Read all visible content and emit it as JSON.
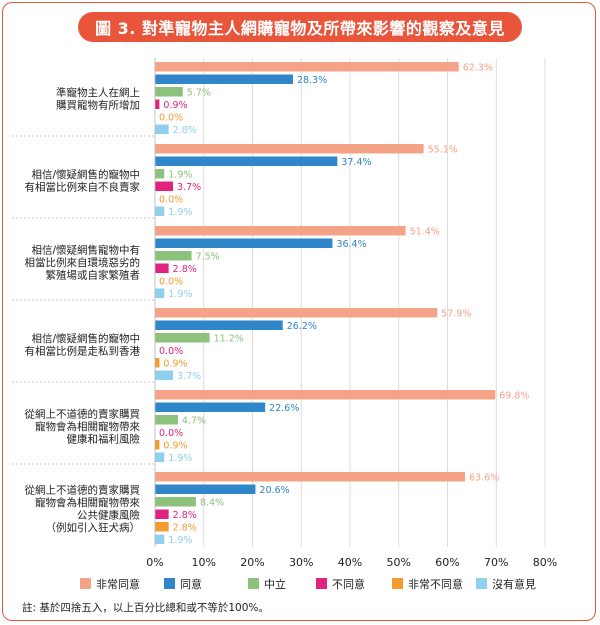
{
  "title": "圖 3. 對準寵物主人網購寵物及所帶來影響的觀察及意見",
  "note": "註: 基於四捨五入，以上百分比總和或不等於100%。",
  "colors": {
    "非常同意": "#f4a387",
    "同意": "#2f86c8",
    "中立": "#8dc27d",
    "不同意": "#e2237d",
    "非常不同意": "#f39b2f",
    "沒有意見": "#8fd0ee",
    "frame": "#e8553b"
  },
  "chart_data": {
    "type": "bar",
    "orientation": "horizontal",
    "x_ticks": [
      "0%",
      "10%",
      "20%",
      "30%",
      "40%",
      "50%",
      "60%",
      "70%",
      "80%"
    ],
    "xlim": [
      0,
      80
    ],
    "grid": true,
    "legend_position": "bottom",
    "categories": [
      [
        "準寵物主人在網上",
        "購買寵物有所增加"
      ],
      [
        "相信/懷疑網售的寵物中",
        "有相當比例來自不良賣家"
      ],
      [
        "相信/懷疑網售寵物中有",
        "相當比例來自環境惡劣的",
        "繁殖場或自家繁殖者"
      ],
      [
        "相信/懷疑網售的寵物中",
        "有相當比例是走私到香港"
      ],
      [
        "從網上不道德的賣家購買",
        "寵物會為相關寵物帶來",
        "健康和福利風險"
      ],
      [
        "從網上不道德的賣家購買",
        "寵物會為相關寵物帶來",
        "公共健康風險",
        "（例如引入狂犬病）"
      ]
    ],
    "series": [
      {
        "name": "非常同意",
        "values": [
          62.3,
          55.1,
          51.4,
          57.9,
          69.8,
          63.6
        ],
        "labels": [
          "62.3%",
          "55.1%",
          "51.4%",
          "57.9%",
          "69.8%",
          "63.6%"
        ]
      },
      {
        "name": "同意",
        "values": [
          28.3,
          37.4,
          36.4,
          26.2,
          22.6,
          20.6
        ],
        "labels": [
          "28.3%",
          "37.4%",
          "36.4%",
          "26.2%",
          "22.6%",
          "20.6%"
        ]
      },
      {
        "name": "中立",
        "values": [
          5.7,
          1.9,
          7.5,
          11.2,
          4.7,
          8.4
        ],
        "labels": [
          "5.7%",
          "1.9%",
          "7.5%",
          "11.2%",
          "4.7%",
          "8.4%"
        ]
      },
      {
        "name": "不同意",
        "values": [
          0.9,
          3.7,
          2.8,
          0.0,
          0.0,
          2.8
        ],
        "labels": [
          "0.9%",
          "3.7%",
          "2.8%",
          "0.0%",
          "0.0%",
          "2.8%"
        ]
      },
      {
        "name": "非常不同意",
        "values": [
          0.0,
          0.0,
          0.0,
          0.9,
          0.9,
          2.8
        ],
        "labels": [
          "0.0%",
          "0.0%",
          "0.0%",
          "0.9%",
          "0.9%",
          "2.8%"
        ]
      },
      {
        "name": "沒有意見",
        "values": [
          2.8,
          1.9,
          1.9,
          3.7,
          1.9,
          1.9
        ],
        "labels": [
          "2.8%",
          "1.9%",
          "1.9%",
          "3.7%",
          "1.9%",
          "1.9%"
        ]
      }
    ]
  }
}
